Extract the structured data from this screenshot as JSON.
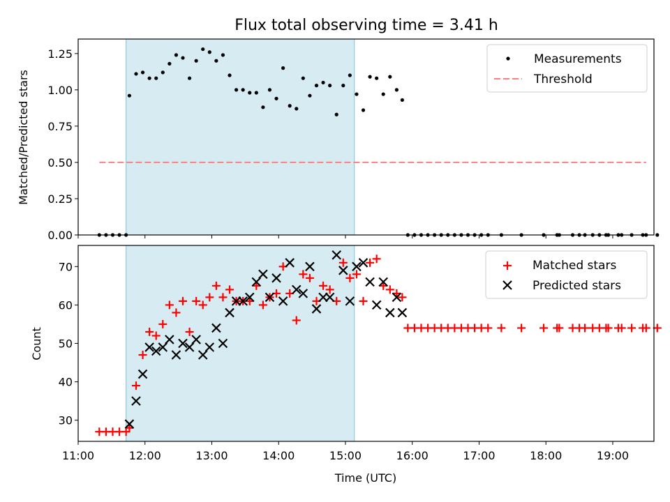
{
  "chart_data": [
    {
      "type": "scatter",
      "title": "Flux total observing time = 3.41 h",
      "xlabel": "",
      "ylabel": "Matched/Predicted stars",
      "xlim": [
        "11:00",
        "19:37"
      ],
      "ylim": [
        0,
        1.35
      ],
      "yticks": [
        "0.00",
        "0.25",
        "0.50",
        "0.75",
        "1.00",
        "1.25"
      ],
      "shaded_region": [
        "11:43",
        "15:08"
      ],
      "legend_position": "upper-right",
      "series": [
        {
          "name": "Measurements",
          "marker": "dot",
          "color": "#000000",
          "points": [
            [
              "11:19",
              0
            ],
            [
              "11:25",
              0
            ],
            [
              "11:31",
              0
            ],
            [
              "11:37",
              0
            ],
            [
              "11:43",
              0
            ],
            [
              "11:46",
              0.96
            ],
            [
              "11:52",
              1.11
            ],
            [
              "11:58",
              1.12
            ],
            [
              "12:04",
              1.08
            ],
            [
              "12:10",
              1.08
            ],
            [
              "12:16",
              1.12
            ],
            [
              "12:22",
              1.18
            ],
            [
              "12:28",
              1.24
            ],
            [
              "12:34",
              1.22
            ],
            [
              "12:40",
              1.08
            ],
            [
              "12:46",
              1.2
            ],
            [
              "12:52",
              1.28
            ],
            [
              "12:58",
              1.26
            ],
            [
              "13:04",
              1.2
            ],
            [
              "13:10",
              1.24
            ],
            [
              "13:16",
              1.1
            ],
            [
              "13:22",
              1.0
            ],
            [
              "13:28",
              1.0
            ],
            [
              "13:34",
              0.98
            ],
            [
              "13:40",
              0.98
            ],
            [
              "13:46",
              0.88
            ],
            [
              "13:52",
              1.0
            ],
            [
              "13:58",
              0.94
            ],
            [
              "14:04",
              1.15
            ],
            [
              "14:10",
              0.89
            ],
            [
              "14:16",
              0.87
            ],
            [
              "14:22",
              1.08
            ],
            [
              "14:28",
              0.96
            ],
            [
              "14:34",
              1.03
            ],
            [
              "14:40",
              1.05
            ],
            [
              "14:46",
              1.03
            ],
            [
              "14:52",
              0.83
            ],
            [
              "14:58",
              1.03
            ],
            [
              "15:04",
              1.1
            ],
            [
              "15:10",
              0.97
            ],
            [
              "15:16",
              0.86
            ],
            [
              "15:22",
              1.09
            ],
            [
              "15:28",
              1.08
            ],
            [
              "15:34",
              0.97
            ],
            [
              "15:40",
              1.09
            ],
            [
              "15:46",
              1.0
            ],
            [
              "15:51",
              0.93
            ],
            [
              "15:56",
              0
            ],
            [
              "16:02",
              0
            ],
            [
              "16:08",
              0
            ],
            [
              "16:14",
              0
            ],
            [
              "16:20",
              0
            ],
            [
              "16:26",
              0
            ],
            [
              "16:32",
              0
            ],
            [
              "16:38",
              0
            ],
            [
              "16:44",
              0
            ],
            [
              "16:50",
              0
            ],
            [
              "16:56",
              0
            ],
            [
              "17:02",
              0
            ],
            [
              "17:08",
              0
            ],
            [
              "17:20",
              0
            ],
            [
              "17:38",
              0
            ],
            [
              "17:58",
              0
            ],
            [
              "18:10",
              0
            ],
            [
              "18:12",
              0
            ],
            [
              "18:24",
              0
            ],
            [
              "18:30",
              0
            ],
            [
              "18:35",
              0
            ],
            [
              "18:42",
              0
            ],
            [
              "18:48",
              0
            ],
            [
              "18:54",
              0
            ],
            [
              "18:56",
              0
            ],
            [
              "19:05",
              0
            ],
            [
              "19:08",
              0
            ],
            [
              "19:17",
              0
            ],
            [
              "19:27",
              0
            ],
            [
              "19:30",
              0
            ],
            [
              "19:40",
              0
            ]
          ]
        },
        {
          "name": "Threshold",
          "line": "dashed",
          "color": "#ff7f7f",
          "points": [
            [
              "11:19",
              0.5
            ],
            [
              "19:30",
              0.5
            ]
          ]
        }
      ]
    },
    {
      "type": "scatter",
      "title": "",
      "xlabel": "Time (UTC)",
      "ylabel": "Count",
      "xlim": [
        "11:00",
        "19:37"
      ],
      "ylim": [
        24.5,
        75.5
      ],
      "yticks": [
        "30",
        "40",
        "50",
        "60",
        "70"
      ],
      "xticks": [
        "11:00",
        "12:00",
        "13:00",
        "14:00",
        "15:00",
        "16:00",
        "17:00",
        "18:00",
        "19:00"
      ],
      "shaded_region": [
        "11:43",
        "15:08"
      ],
      "legend_position": "upper-right",
      "series": [
        {
          "name": "Matched stars",
          "marker": "plus",
          "color": "#ff0000",
          "points": [
            [
              "11:19",
              27
            ],
            [
              "11:25",
              27
            ],
            [
              "11:31",
              27
            ],
            [
              "11:37",
              27
            ],
            [
              "11:43",
              27
            ],
            [
              "11:46",
              28
            ],
            [
              "11:52",
              39
            ],
            [
              "11:58",
              47
            ],
            [
              "12:04",
              53
            ],
            [
              "12:10",
              52
            ],
            [
              "12:16",
              55
            ],
            [
              "12:22",
              60
            ],
            [
              "12:28",
              58
            ],
            [
              "12:34",
              61
            ],
            [
              "12:40",
              53
            ],
            [
              "12:46",
              61
            ],
            [
              "12:52",
              60
            ],
            [
              "12:58",
              62
            ],
            [
              "13:04",
              65
            ],
            [
              "13:10",
              62
            ],
            [
              "13:16",
              64
            ],
            [
              "13:22",
              61
            ],
            [
              "13:28",
              61
            ],
            [
              "13:34",
              61
            ],
            [
              "13:40",
              65
            ],
            [
              "13:46",
              60
            ],
            [
              "13:52",
              62
            ],
            [
              "13:58",
              63
            ],
            [
              "14:04",
              70
            ],
            [
              "14:10",
              63
            ],
            [
              "14:16",
              56
            ],
            [
              "14:22",
              68
            ],
            [
              "14:28",
              67
            ],
            [
              "14:34",
              61
            ],
            [
              "14:40",
              65
            ],
            [
              "14:46",
              64
            ],
            [
              "14:52",
              61
            ],
            [
              "14:58",
              71
            ],
            [
              "15:04",
              67
            ],
            [
              "15:10",
              68
            ],
            [
              "15:16",
              61
            ],
            [
              "15:22",
              71
            ],
            [
              "15:28",
              72
            ],
            [
              "15:34",
              65
            ],
            [
              "15:40",
              64
            ],
            [
              "15:46",
              63
            ],
            [
              "15:51",
              62
            ],
            [
              "15:56",
              54
            ],
            [
              "16:02",
              54
            ],
            [
              "16:08",
              54
            ],
            [
              "16:14",
              54
            ],
            [
              "16:20",
              54
            ],
            [
              "16:26",
              54
            ],
            [
              "16:32",
              54
            ],
            [
              "16:38",
              54
            ],
            [
              "16:44",
              54
            ],
            [
              "16:50",
              54
            ],
            [
              "16:56",
              54
            ],
            [
              "17:02",
              54
            ],
            [
              "17:08",
              54
            ],
            [
              "17:20",
              54
            ],
            [
              "17:38",
              54
            ],
            [
              "17:58",
              54
            ],
            [
              "18:10",
              54
            ],
            [
              "18:12",
              54
            ],
            [
              "18:24",
              54
            ],
            [
              "18:30",
              54
            ],
            [
              "18:35",
              54
            ],
            [
              "18:42",
              54
            ],
            [
              "18:48",
              54
            ],
            [
              "18:54",
              54
            ],
            [
              "18:56",
              54
            ],
            [
              "19:05",
              54
            ],
            [
              "19:08",
              54
            ],
            [
              "19:17",
              54
            ],
            [
              "19:27",
              54
            ],
            [
              "19:30",
              54
            ],
            [
              "19:40",
              54
            ]
          ]
        },
        {
          "name": "Predicted stars",
          "marker": "x",
          "color": "#000000",
          "points": [
            [
              "11:46",
              29
            ],
            [
              "11:52",
              35
            ],
            [
              "11:58",
              42
            ],
            [
              "12:04",
              49
            ],
            [
              "12:10",
              48
            ],
            [
              "12:16",
              49
            ],
            [
              "12:22",
              51
            ],
            [
              "12:28",
              47
            ],
            [
              "12:34",
              50
            ],
            [
              "12:40",
              49
            ],
            [
              "12:46",
              51
            ],
            [
              "12:52",
              47
            ],
            [
              "12:58",
              49
            ],
            [
              "13:04",
              54
            ],
            [
              "13:10",
              50
            ],
            [
              "13:16",
              58
            ],
            [
              "13:22",
              61
            ],
            [
              "13:28",
              61
            ],
            [
              "13:34",
              62
            ],
            [
              "13:40",
              66
            ],
            [
              "13:46",
              68
            ],
            [
              "13:52",
              62
            ],
            [
              "13:58",
              67
            ],
            [
              "14:04",
              61
            ],
            [
              "14:10",
              71
            ],
            [
              "14:16",
              64
            ],
            [
              "14:22",
              63
            ],
            [
              "14:28",
              70
            ],
            [
              "14:34",
              59
            ],
            [
              "14:40",
              62
            ],
            [
              "14:46",
              62
            ],
            [
              "14:52",
              73
            ],
            [
              "14:58",
              69
            ],
            [
              "15:04",
              61
            ],
            [
              "15:10",
              70
            ],
            [
              "15:16",
              71
            ],
            [
              "15:22",
              66
            ],
            [
              "15:28",
              60
            ],
            [
              "15:34",
              66
            ],
            [
              "15:40",
              58
            ],
            [
              "15:46",
              62
            ],
            [
              "15:51",
              58
            ]
          ]
        }
      ]
    }
  ]
}
